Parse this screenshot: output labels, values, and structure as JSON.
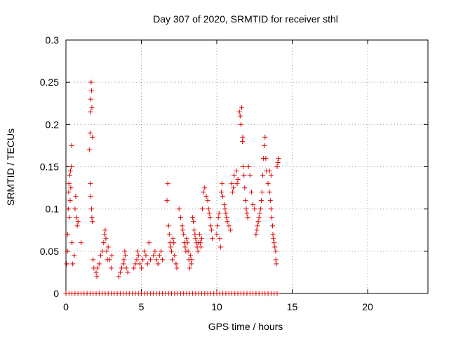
{
  "chart_data": {
    "type": "scatter",
    "title": "Day 307 of 2020, SRMTID for receiver sthl",
    "xlabel": "GPS time / hours",
    "ylabel": "SRMTID / TECUs",
    "xlim": [
      0,
      24
    ],
    "ylim": [
      0,
      0.3
    ],
    "xticks": [
      0,
      5,
      10,
      15,
      20
    ],
    "yticks": [
      0,
      0.05,
      0.1,
      0.15,
      0.2,
      0.25,
      0.3
    ],
    "xtick_labels": [
      "0",
      "5",
      "10",
      "15",
      "20"
    ],
    "ytick_labels": [
      "0",
      "0.05",
      "0.1",
      "0.15",
      "0.2",
      "0.25",
      "0.3"
    ],
    "grid": true,
    "marker": "+",
    "color": "#e00000",
    "series": [
      {
        "points": [
          [
            0.05,
            0.035
          ],
          [
            0.1,
            0.05
          ],
          [
            0.12,
            0.07
          ],
          [
            0.15,
            0.1
          ],
          [
            0.18,
            0.12
          ],
          [
            0.2,
            0.13
          ],
          [
            0.22,
            0.09
          ],
          [
            0.25,
            0.14
          ],
          [
            0.28,
            0.11
          ],
          [
            0.3,
            0.145
          ],
          [
            0.32,
            0.125
          ],
          [
            0.35,
            0.15
          ],
          [
            0.38,
            0.175
          ],
          [
            0.4,
            0.06
          ],
          [
            0.45,
            0.035
          ],
          [
            0.55,
            0.045
          ],
          [
            0.6,
            0.1
          ],
          [
            0.65,
            0.115
          ],
          [
            0.7,
            0.09
          ],
          [
            0.75,
            0.08
          ],
          [
            0.8,
            0.085
          ],
          [
            1.0,
            0.06
          ],
          [
            1.55,
            0.17
          ],
          [
            1.6,
            0.19
          ],
          [
            1.62,
            0.215
          ],
          [
            1.65,
            0.23
          ],
          [
            1.67,
            0.25
          ],
          [
            1.7,
            0.24
          ],
          [
            1.72,
            0.22
          ],
          [
            1.75,
            0.185
          ],
          [
            1.62,
            0.13
          ],
          [
            1.65,
            0.115
          ],
          [
            1.7,
            0.1
          ],
          [
            1.72,
            0.09
          ],
          [
            1.75,
            0.085
          ],
          [
            1.8,
            0.04
          ],
          [
            1.85,
            0.03
          ],
          [
            2.0,
            0.025
          ],
          [
            2.05,
            0.02
          ],
          [
            2.1,
            0.03
          ],
          [
            2.2,
            0.035
          ],
          [
            2.3,
            0.045
          ],
          [
            2.4,
            0.05
          ],
          [
            2.5,
            0.06
          ],
          [
            2.55,
            0.07
          ],
          [
            2.6,
            0.075
          ],
          [
            2.65,
            0.065
          ],
          [
            2.7,
            0.05
          ],
          [
            2.75,
            0.04
          ],
          [
            2.8,
            0.055
          ],
          [
            2.9,
            0.04
          ],
          [
            3.0,
            0.03
          ],
          [
            3.05,
            0.045
          ],
          [
            3.5,
            0.02
          ],
          [
            3.6,
            0.025
          ],
          [
            3.7,
            0.03
          ],
          [
            3.8,
            0.035
          ],
          [
            3.85,
            0.04
          ],
          [
            3.9,
            0.05
          ],
          [
            3.95,
            0.045
          ],
          [
            4.0,
            0.03
          ],
          [
            4.1,
            0.025
          ],
          [
            4.5,
            0.03
          ],
          [
            4.6,
            0.035
          ],
          [
            4.7,
            0.04
          ],
          [
            4.75,
            0.05
          ],
          [
            4.8,
            0.045
          ],
          [
            4.9,
            0.035
          ],
          [
            5.0,
            0.03
          ],
          [
            5.1,
            0.04
          ],
          [
            5.2,
            0.05
          ],
          [
            5.3,
            0.045
          ],
          [
            5.4,
            0.035
          ],
          [
            5.5,
            0.06
          ],
          [
            5.6,
            0.04
          ],
          [
            5.8,
            0.045
          ],
          [
            5.9,
            0.05
          ],
          [
            6.0,
            0.04
          ],
          [
            6.1,
            0.035
          ],
          [
            6.2,
            0.045
          ],
          [
            6.3,
            0.05
          ],
          [
            6.4,
            0.04
          ],
          [
            6.7,
            0.11
          ],
          [
            6.75,
            0.13
          ],
          [
            6.8,
            0.08
          ],
          [
            6.85,
            0.07
          ],
          [
            6.9,
            0.06
          ],
          [
            6.95,
            0.055
          ],
          [
            7.0,
            0.05
          ],
          [
            7.05,
            0.04
          ],
          [
            7.1,
            0.065
          ],
          [
            7.15,
            0.06
          ],
          [
            7.2,
            0.045
          ],
          [
            7.3,
            0.035
          ],
          [
            7.35,
            0.03
          ],
          [
            7.5,
            0.1
          ],
          [
            7.6,
            0.09
          ],
          [
            7.7,
            0.08
          ],
          [
            7.75,
            0.075
          ],
          [
            7.8,
            0.07
          ],
          [
            7.85,
            0.06
          ],
          [
            7.9,
            0.055
          ],
          [
            7.95,
            0.05
          ],
          [
            8.0,
            0.065
          ],
          [
            8.05,
            0.06
          ],
          [
            8.1,
            0.05
          ],
          [
            8.15,
            0.04
          ],
          [
            8.2,
            0.03
          ],
          [
            8.25,
            0.045
          ],
          [
            8.3,
            0.035
          ],
          [
            8.35,
            0.04
          ],
          [
            8.4,
            0.09
          ],
          [
            8.45,
            0.085
          ],
          [
            8.5,
            0.075
          ],
          [
            8.55,
            0.07
          ],
          [
            8.6,
            0.065
          ],
          [
            8.65,
            0.06
          ],
          [
            8.7,
            0.055
          ],
          [
            8.75,
            0.05
          ],
          [
            8.8,
            0.06
          ],
          [
            8.85,
            0.07
          ],
          [
            8.9,
            0.06
          ],
          [
            8.95,
            0.055
          ],
          [
            9.0,
            0.065
          ],
          [
            9.05,
            0.1
          ],
          [
            9.1,
            0.12
          ],
          [
            9.2,
            0.125
          ],
          [
            9.3,
            0.115
          ],
          [
            9.4,
            0.11
          ],
          [
            9.45,
            0.1
          ],
          [
            9.5,
            0.095
          ],
          [
            9.55,
            0.09
          ],
          [
            9.6,
            0.08
          ],
          [
            9.65,
            0.075
          ],
          [
            9.7,
            0.065
          ],
          [
            10.0,
            0.07
          ],
          [
            10.05,
            0.08
          ],
          [
            10.1,
            0.09
          ],
          [
            10.15,
            0.095
          ],
          [
            10.2,
            0.065
          ],
          [
            10.25,
            0.055
          ],
          [
            10.3,
            0.12
          ],
          [
            10.35,
            0.13
          ],
          [
            10.4,
            0.115
          ],
          [
            10.5,
            0.105
          ],
          [
            10.55,
            0.1
          ],
          [
            10.6,
            0.095
          ],
          [
            10.65,
            0.09
          ],
          [
            10.7,
            0.085
          ],
          [
            10.8,
            0.08
          ],
          [
            10.9,
            0.075
          ],
          [
            11.0,
            0.13
          ],
          [
            11.05,
            0.12
          ],
          [
            11.1,
            0.125
          ],
          [
            11.15,
            0.14
          ],
          [
            11.3,
            0.145
          ],
          [
            11.35,
            0.13
          ],
          [
            11.4,
            0.135
          ],
          [
            11.5,
            0.215
          ],
          [
            11.55,
            0.21
          ],
          [
            11.6,
            0.2
          ],
          [
            11.65,
            0.22
          ],
          [
            11.7,
            0.18
          ],
          [
            11.72,
            0.185
          ],
          [
            11.75,
            0.15
          ],
          [
            11.8,
            0.14
          ],
          [
            11.85,
            0.125
          ],
          [
            11.9,
            0.11
          ],
          [
            11.95,
            0.1
          ],
          [
            12.0,
            0.095
          ],
          [
            12.05,
            0.09
          ],
          [
            12.1,
            0.15
          ],
          [
            12.2,
            0.14
          ],
          [
            12.3,
            0.12
          ],
          [
            12.4,
            0.105
          ],
          [
            12.5,
            0.1
          ],
          [
            12.6,
            0.07
          ],
          [
            12.65,
            0.075
          ],
          [
            12.7,
            0.08
          ],
          [
            12.75,
            0.085
          ],
          [
            12.8,
            0.09
          ],
          [
            12.85,
            0.095
          ],
          [
            12.9,
            0.1
          ],
          [
            12.95,
            0.11
          ],
          [
            13.0,
            0.12
          ],
          [
            13.05,
            0.14
          ],
          [
            13.1,
            0.16
          ],
          [
            13.15,
            0.175
          ],
          [
            13.2,
            0.185
          ],
          [
            13.25,
            0.16
          ],
          [
            13.3,
            0.145
          ],
          [
            13.4,
            0.13
          ],
          [
            13.5,
            0.12
          ],
          [
            13.55,
            0.11
          ],
          [
            13.6,
            0.1
          ],
          [
            13.65,
            0.09
          ],
          [
            13.7,
            0.08
          ],
          [
            13.72,
            0.07
          ],
          [
            13.75,
            0.065
          ],
          [
            13.8,
            0.06
          ],
          [
            13.85,
            0.055
          ],
          [
            13.9,
            0.05
          ],
          [
            13.92,
            0.04
          ],
          [
            13.95,
            0.035
          ],
          [
            14.0,
            0.15
          ],
          [
            14.05,
            0.155
          ],
          [
            14.1,
            0.16
          ],
          [
            13.5,
            0.145
          ],
          [
            13.6,
            0.14
          ]
        ]
      },
      {
        "points": [
          [
            0.0,
            0
          ],
          [
            0.2,
            0
          ],
          [
            0.4,
            0
          ],
          [
            0.6,
            0
          ],
          [
            0.8,
            0
          ],
          [
            1.0,
            0
          ],
          [
            1.2,
            0
          ],
          [
            1.4,
            0
          ],
          [
            1.6,
            0
          ],
          [
            1.8,
            0
          ],
          [
            2.0,
            0
          ],
          [
            2.2,
            0
          ],
          [
            2.4,
            0
          ],
          [
            2.6,
            0
          ],
          [
            2.8,
            0
          ],
          [
            3.0,
            0
          ],
          [
            3.2,
            0
          ],
          [
            3.4,
            0
          ],
          [
            3.6,
            0
          ],
          [
            3.8,
            0
          ],
          [
            4.0,
            0
          ],
          [
            4.2,
            0
          ],
          [
            4.4,
            0
          ],
          [
            4.6,
            0
          ],
          [
            4.8,
            0
          ],
          [
            5.0,
            0
          ],
          [
            5.2,
            0
          ],
          [
            5.4,
            0
          ],
          [
            5.6,
            0
          ],
          [
            5.8,
            0
          ],
          [
            6.0,
            0
          ],
          [
            6.2,
            0
          ],
          [
            6.4,
            0
          ],
          [
            6.6,
            0
          ],
          [
            6.8,
            0
          ],
          [
            7.0,
            0
          ],
          [
            7.2,
            0
          ],
          [
            7.4,
            0
          ],
          [
            7.6,
            0
          ],
          [
            7.8,
            0
          ],
          [
            8.0,
            0
          ],
          [
            8.2,
            0
          ],
          [
            8.4,
            0
          ],
          [
            8.6,
            0
          ],
          [
            8.8,
            0
          ],
          [
            9.0,
            0
          ],
          [
            9.2,
            0
          ],
          [
            9.4,
            0
          ],
          [
            9.6,
            0
          ],
          [
            9.8,
            0
          ],
          [
            10.0,
            0
          ],
          [
            10.2,
            0
          ],
          [
            10.4,
            0
          ],
          [
            10.6,
            0
          ],
          [
            10.8,
            0
          ],
          [
            11.0,
            0
          ],
          [
            11.2,
            0
          ],
          [
            11.4,
            0
          ],
          [
            11.6,
            0
          ],
          [
            11.8,
            0
          ],
          [
            12.0,
            0
          ],
          [
            12.2,
            0
          ],
          [
            12.4,
            0
          ],
          [
            12.6,
            0
          ],
          [
            12.8,
            0
          ],
          [
            13.0,
            0
          ],
          [
            13.2,
            0
          ],
          [
            13.4,
            0
          ],
          [
            13.6,
            0
          ],
          [
            13.8,
            0
          ],
          [
            14.0,
            0
          ]
        ]
      }
    ]
  }
}
